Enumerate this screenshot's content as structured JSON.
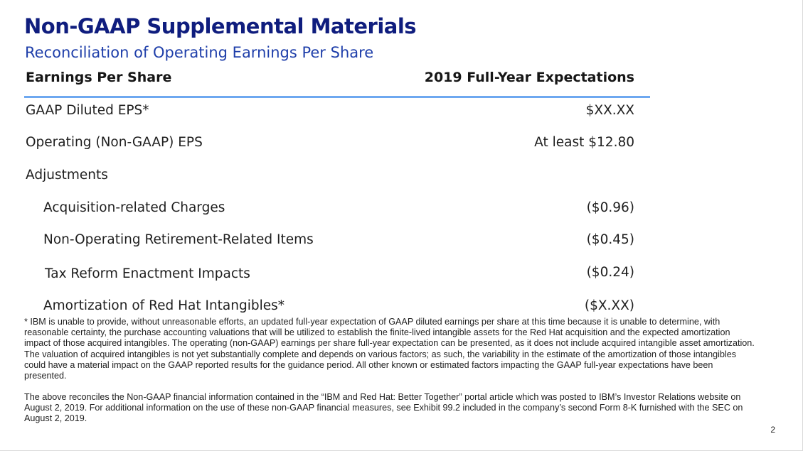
{
  "header": {
    "title": "Non-GAAP Supplemental Materials",
    "subtitle": "Reconciliation of Operating Earnings Per Share"
  },
  "table": {
    "columns": [
      "Earnings Per Share",
      "2019 Full-Year Expectations"
    ],
    "rows": [
      {
        "label": "GAAP Diluted EPS*",
        "value": "$XX.XX"
      },
      {
        "label": "Operating (Non-GAAP) EPS",
        "value": "At least $12.80"
      },
      {
        "label": "Adjustments",
        "value": ""
      },
      {
        "label": "Acquisition-related Charges",
        "value": "($0.96)"
      },
      {
        "label": "Non-Operating Retirement-Related Items",
        "value": "($0.45)"
      },
      {
        "label": "Tax Reform Enactment Impacts",
        "value": "($0.24)"
      },
      {
        "label": "Amortization of Red Hat Intangibles*",
        "value": "($X.XX)"
      }
    ]
  },
  "footnote": "* IBM is unable to provide, without unreasonable efforts, an updated full-year expectation of GAAP diluted earnings per share at this time because it is unable to determine, with reasonable certainty, the purchase accounting valuations that will be utilized to establish the finite-lived intangible assets for the Red Hat acquisition and the expected amortization impact of those acquired intangibles.  The operating (non-GAAP) earnings per share full-year expectation can be presented, as it does not include acquired intangible asset amortization. The valuation of acquired intangibles is not yet substantially complete and depends on various factors; as such, the variability in the estimate of the amortization of those intangibles could have a material impact on the GAAP reported results for the guidance period.  All other known or estimated factors impacting the GAAP full-year expectations have been presented.",
  "source_note": "The above reconciles the Non-GAAP financial information contained in the “IBM and Red Hat: Better Together” portal article which was posted to IBM’s Investor Relations website on August 2, 2019. For additional information on the use of these non-GAAP financial measures, see Exhibit 99.2 included in the company’s second Form 8-K furnished with the SEC on August 2, 2019.",
  "page_number": "2"
}
